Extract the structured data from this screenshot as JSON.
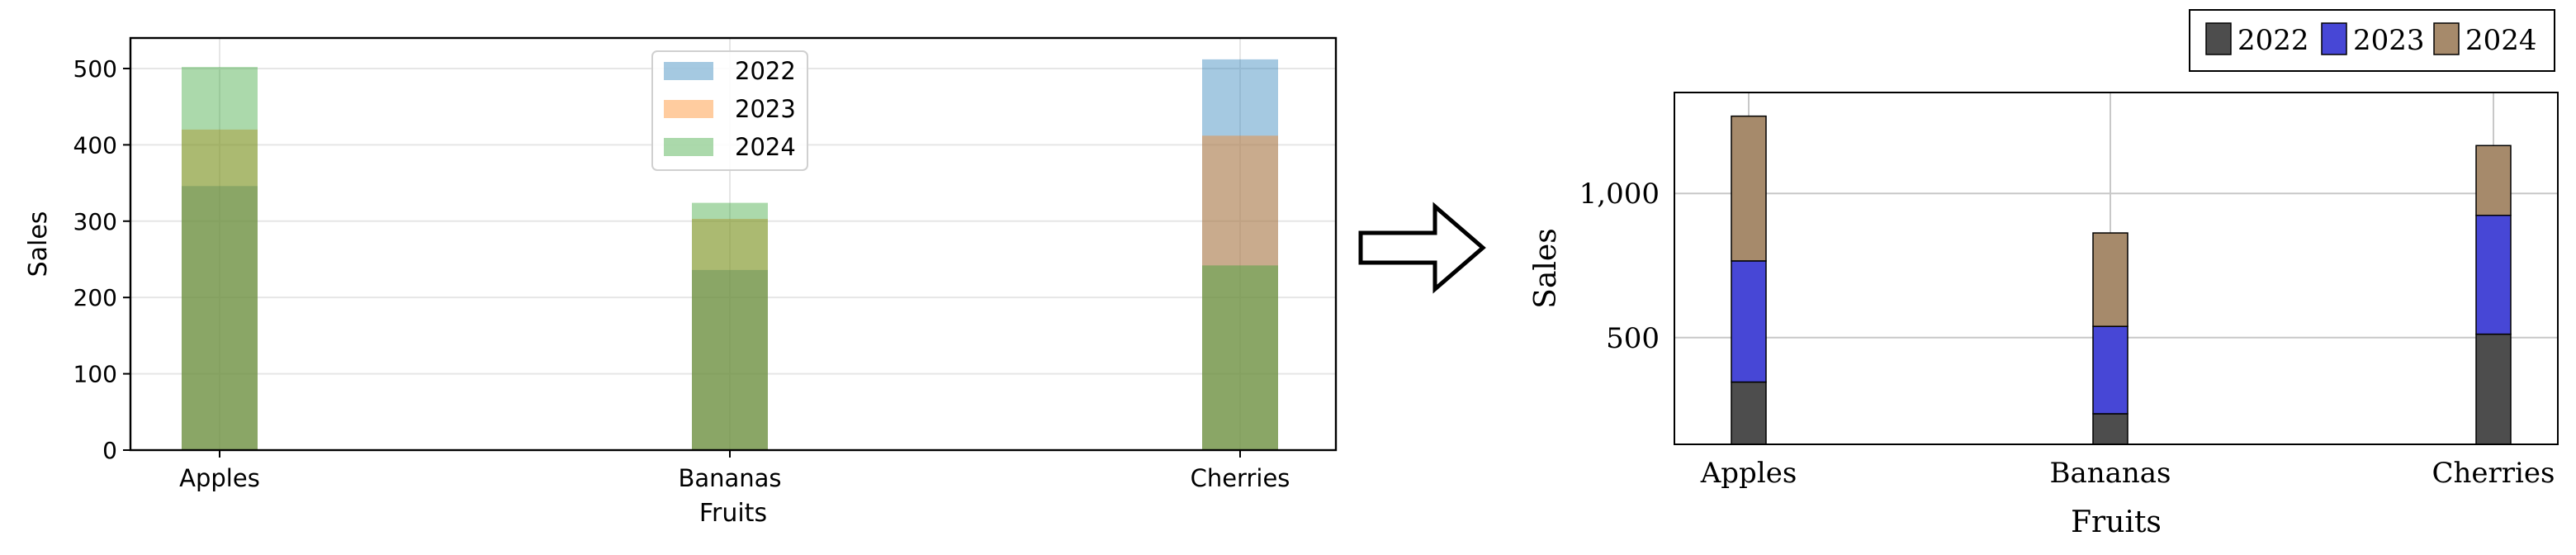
{
  "chart_data": [
    {
      "type": "bar",
      "style": "overlapping translucent bars",
      "categories": [
        "Apples",
        "Bananas",
        "Cherries"
      ],
      "series": [
        {
          "name": "2022",
          "values": [
            346,
            236,
            512
          ],
          "color": "#1f77b4"
        },
        {
          "name": "2023",
          "values": [
            420,
            303,
            412
          ],
          "color": "#ff7f0e"
        },
        {
          "name": "2024",
          "values": [
            502,
            324,
            242
          ],
          "color": "#2ca02c"
        }
      ],
      "xlabel": "Fruits",
      "ylabel": "Sales",
      "ylim": [
        0,
        540
      ],
      "yticks": [
        0,
        100,
        200,
        300,
        400,
        500
      ],
      "grid": true,
      "legend_position": "top-center"
    },
    {
      "type": "bar",
      "style": "stacked",
      "categories": [
        "Apples",
        "Bananas",
        "Cherries"
      ],
      "series": [
        {
          "name": "2022",
          "values": [
            346,
            236,
            512
          ],
          "color": "#4d4d4d"
        },
        {
          "name": "2023",
          "values": [
            420,
            303,
            412
          ],
          "color": "#4747d6"
        },
        {
          "name": "2024",
          "values": [
            502,
            324,
            242
          ],
          "color": "#a68a6b"
        }
      ],
      "xlabel": "Fruits",
      "ylabel": "Sales",
      "ylim": [
        130,
        1350
      ],
      "yticks": [
        500,
        1000
      ],
      "ytick_labels": [
        "500",
        "1,000"
      ],
      "grid": true,
      "legend_position": "above, top-right"
    }
  ],
  "arrow": {
    "icon": "right-arrow-icon"
  }
}
